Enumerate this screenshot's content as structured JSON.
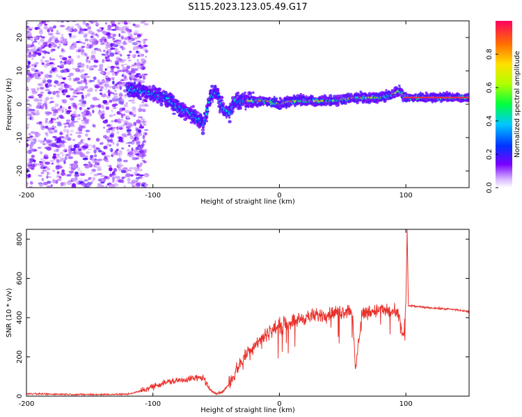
{
  "title": "S115.2023.123.05.49.G17",
  "chart_data": [
    {
      "type": "heatmap",
      "name": "spectrogram",
      "xlabel": "Height of straight line (km)",
      "ylabel": "Frequency (Hz)",
      "xlim": [
        -200,
        150
      ],
      "ylim": [
        -25,
        25
      ],
      "x_ticks": [
        -200,
        -100,
        0,
        100
      ],
      "y_ticks": [
        -20,
        -10,
        0,
        10,
        20
      ],
      "colorbar": {
        "label": "Normalized spectral amplitude",
        "range": [
          0,
          1
        ],
        "ticks": [
          0.0,
          0.2,
          0.4,
          0.6,
          0.8
        ]
      },
      "ridge": {
        "x": [
          -120,
          -110,
          -100,
          -90,
          -80,
          -70,
          -60,
          -55,
          -50,
          -45,
          -40,
          -35,
          -30,
          -20,
          -10,
          0,
          10,
          20,
          30,
          40,
          50,
          60,
          70,
          80,
          90,
          95,
          100,
          110,
          120,
          130,
          140,
          150
        ],
        "y": [
          5,
          4,
          3,
          2,
          -1,
          -3,
          -6,
          2,
          4,
          -1,
          -3,
          1,
          1,
          1,
          1,
          0,
          1,
          1,
          1,
          1,
          1.5,
          2,
          2,
          2,
          3,
          4,
          2,
          2,
          2,
          2,
          2,
          2
        ]
      },
      "noise_region_x": [
        -200,
        -105
      ]
    },
    {
      "type": "line",
      "name": "snr",
      "xlabel": "Height of straight line (km)",
      "ylabel": "SNR (10 * v/v)",
      "xlim": [
        -200,
        150
      ],
      "ylim": [
        0,
        850
      ],
      "x_ticks": [
        -200,
        -100,
        0,
        100
      ],
      "y_ticks": [
        0,
        200,
        400,
        600,
        800
      ],
      "series": [
        {
          "color": "#e8322c",
          "x": [
            -200,
            -150,
            -120,
            -110,
            -100,
            -90,
            -80,
            -70,
            -60,
            -55,
            -50,
            -45,
            -40,
            -35,
            -30,
            -25,
            -20,
            -10,
            0,
            10,
            20,
            30,
            40,
            50,
            55,
            58,
            60,
            65,
            70,
            80,
            90,
            95,
            98,
            100,
            101,
            102,
            105,
            110,
            120,
            130,
            140,
            150
          ],
          "y": [
            12,
            8,
            10,
            25,
            50,
            70,
            80,
            90,
            95,
            30,
            15,
            20,
            60,
            120,
            180,
            220,
            260,
            320,
            360,
            380,
            400,
            410,
            420,
            430,
            440,
            420,
            120,
            420,
            430,
            440,
            430,
            400,
            300,
            470,
            850,
            460,
            460,
            455,
            450,
            445,
            440,
            430
          ]
        }
      ]
    }
  ]
}
